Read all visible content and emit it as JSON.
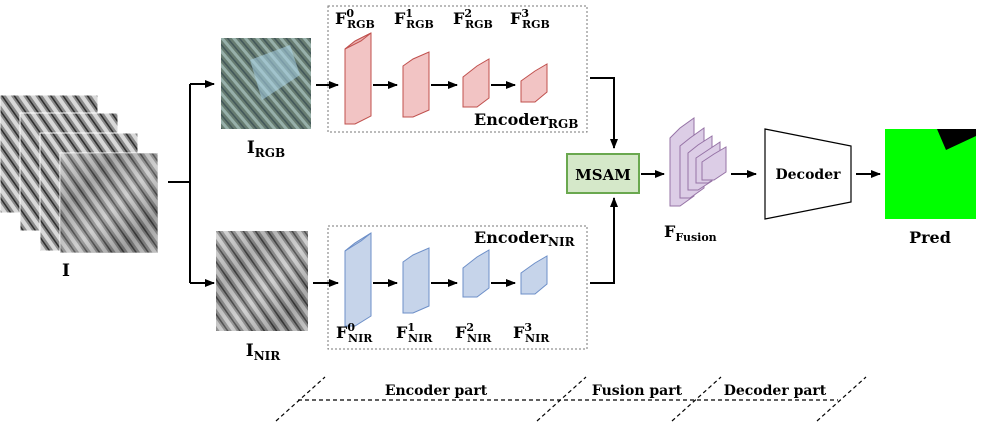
{
  "inputs": {
    "stack_label": "I",
    "rgb": {
      "base": "I",
      "sub": "RGB"
    },
    "nir": {
      "base": "I",
      "sub": "NIR"
    }
  },
  "encoder_rgb": {
    "title_base": "Encoder",
    "title_sub": "RGB",
    "features": [
      {
        "base": "F",
        "sup": "0",
        "sub": "RGB"
      },
      {
        "base": "F",
        "sup": "1",
        "sub": "RGB"
      },
      {
        "base": "F",
        "sup": "2",
        "sub": "RGB"
      },
      {
        "base": "F",
        "sup": "3",
        "sub": "RGB"
      }
    ]
  },
  "encoder_nir": {
    "title_base": "Encoder",
    "title_sub": "NIR",
    "features": [
      {
        "base": "F",
        "sup": "0",
        "sub": "NIR"
      },
      {
        "base": "F",
        "sup": "1",
        "sub": "NIR"
      },
      {
        "base": "F",
        "sup": "2",
        "sub": "NIR"
      },
      {
        "base": "F",
        "sup": "3",
        "sub": "NIR"
      }
    ]
  },
  "msam": {
    "label": "MSAM"
  },
  "fusion": {
    "base": "F",
    "sub": "Fusion"
  },
  "decoder": {
    "label": "Decoder"
  },
  "pred": {
    "label": "Pred"
  },
  "parts": {
    "encoder": "Encoder part",
    "fusion": "Fusion part",
    "decoder": "Decoder part"
  },
  "colors": {
    "rgb_fill": "#f2c4c4",
    "rgb_stroke": "#c0504d",
    "nir_fill": "#c6d4ea",
    "nir_stroke": "#6d8fc8",
    "msam_fill": "#d5e8c9",
    "msam_stroke": "#6aa84f",
    "fusion_fill": "#dccde6",
    "fusion_stroke": "#9673a6",
    "pred_green": "#00ff00",
    "pred_black": "#000000"
  }
}
